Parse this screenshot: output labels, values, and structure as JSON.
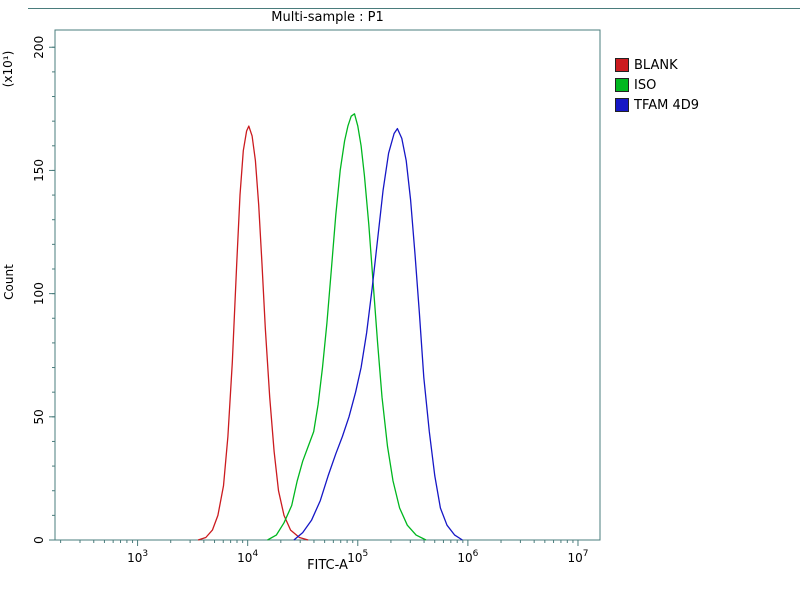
{
  "chart_data": {
    "type": "line",
    "title": "Multi-sample : P1",
    "xlabel": "FITC-A",
    "ylabel": "Count",
    "y_unit": "(x10¹)",
    "x_scale": "log10",
    "x_log_range": [
      2.25,
      7.2
    ],
    "x_major_tick_exponents": [
      3,
      4,
      5,
      6,
      7
    ],
    "ylim": [
      0,
      207
    ],
    "y_major_ticks": [
      0,
      50,
      100,
      150,
      200
    ],
    "y_minor_step": 10,
    "grid": false,
    "legend_position": "right-outside",
    "frame_color": "#4a7c7c",
    "series": [
      {
        "name": "BLANK",
        "color": "#cb1b1f",
        "peak_logx": 4.0,
        "peak_count": 168,
        "points": [
          [
            3.55,
            0
          ],
          [
            3.62,
            1
          ],
          [
            3.68,
            4
          ],
          [
            3.73,
            10
          ],
          [
            3.78,
            22
          ],
          [
            3.82,
            42
          ],
          [
            3.86,
            72
          ],
          [
            3.9,
            112
          ],
          [
            3.93,
            140
          ],
          [
            3.96,
            158
          ],
          [
            3.99,
            166
          ],
          [
            4.01,
            168
          ],
          [
            4.04,
            164
          ],
          [
            4.07,
            154
          ],
          [
            4.1,
            136
          ],
          [
            4.13,
            112
          ],
          [
            4.16,
            86
          ],
          [
            4.2,
            58
          ],
          [
            4.24,
            36
          ],
          [
            4.28,
            20
          ],
          [
            4.33,
            10
          ],
          [
            4.39,
            4
          ],
          [
            4.47,
            1
          ],
          [
            4.55,
            0
          ]
        ]
      },
      {
        "name": "ISO",
        "color": "#00b71f",
        "peak_logx": 4.97,
        "peak_count": 173,
        "points": [
          [
            4.18,
            0
          ],
          [
            4.26,
            2
          ],
          [
            4.33,
            7
          ],
          [
            4.4,
            14
          ],
          [
            4.45,
            24
          ],
          [
            4.5,
            32
          ],
          [
            4.55,
            38
          ],
          [
            4.6,
            44
          ],
          [
            4.64,
            55
          ],
          [
            4.68,
            70
          ],
          [
            4.72,
            88
          ],
          [
            4.76,
            110
          ],
          [
            4.8,
            132
          ],
          [
            4.84,
            150
          ],
          [
            4.88,
            162
          ],
          [
            4.91,
            168
          ],
          [
            4.94,
            172
          ],
          [
            4.97,
            173
          ],
          [
            5.0,
            168
          ],
          [
            5.03,
            160
          ],
          [
            5.06,
            148
          ],
          [
            5.1,
            128
          ],
          [
            5.14,
            104
          ],
          [
            5.18,
            80
          ],
          [
            5.22,
            58
          ],
          [
            5.27,
            38
          ],
          [
            5.32,
            24
          ],
          [
            5.38,
            13
          ],
          [
            5.45,
            6
          ],
          [
            5.53,
            2
          ],
          [
            5.62,
            0
          ]
        ]
      },
      {
        "name": "TFAM 4D9",
        "color": "#1617c6",
        "peak_logx": 5.36,
        "peak_count": 167,
        "points": [
          [
            4.42,
            0
          ],
          [
            4.5,
            3
          ],
          [
            4.58,
            8
          ],
          [
            4.66,
            16
          ],
          [
            4.73,
            26
          ],
          [
            4.8,
            35
          ],
          [
            4.86,
            42
          ],
          [
            4.92,
            50
          ],
          [
            4.98,
            60
          ],
          [
            5.03,
            70
          ],
          [
            5.08,
            84
          ],
          [
            5.13,
            102
          ],
          [
            5.18,
            122
          ],
          [
            5.23,
            142
          ],
          [
            5.28,
            157
          ],
          [
            5.33,
            165
          ],
          [
            5.36,
            167
          ],
          [
            5.4,
            163
          ],
          [
            5.44,
            154
          ],
          [
            5.48,
            138
          ],
          [
            5.52,
            116
          ],
          [
            5.56,
            92
          ],
          [
            5.6,
            66
          ],
          [
            5.65,
            44
          ],
          [
            5.7,
            26
          ],
          [
            5.75,
            13
          ],
          [
            5.81,
            6
          ],
          [
            5.88,
            2
          ],
          [
            5.95,
            0
          ]
        ]
      }
    ]
  }
}
